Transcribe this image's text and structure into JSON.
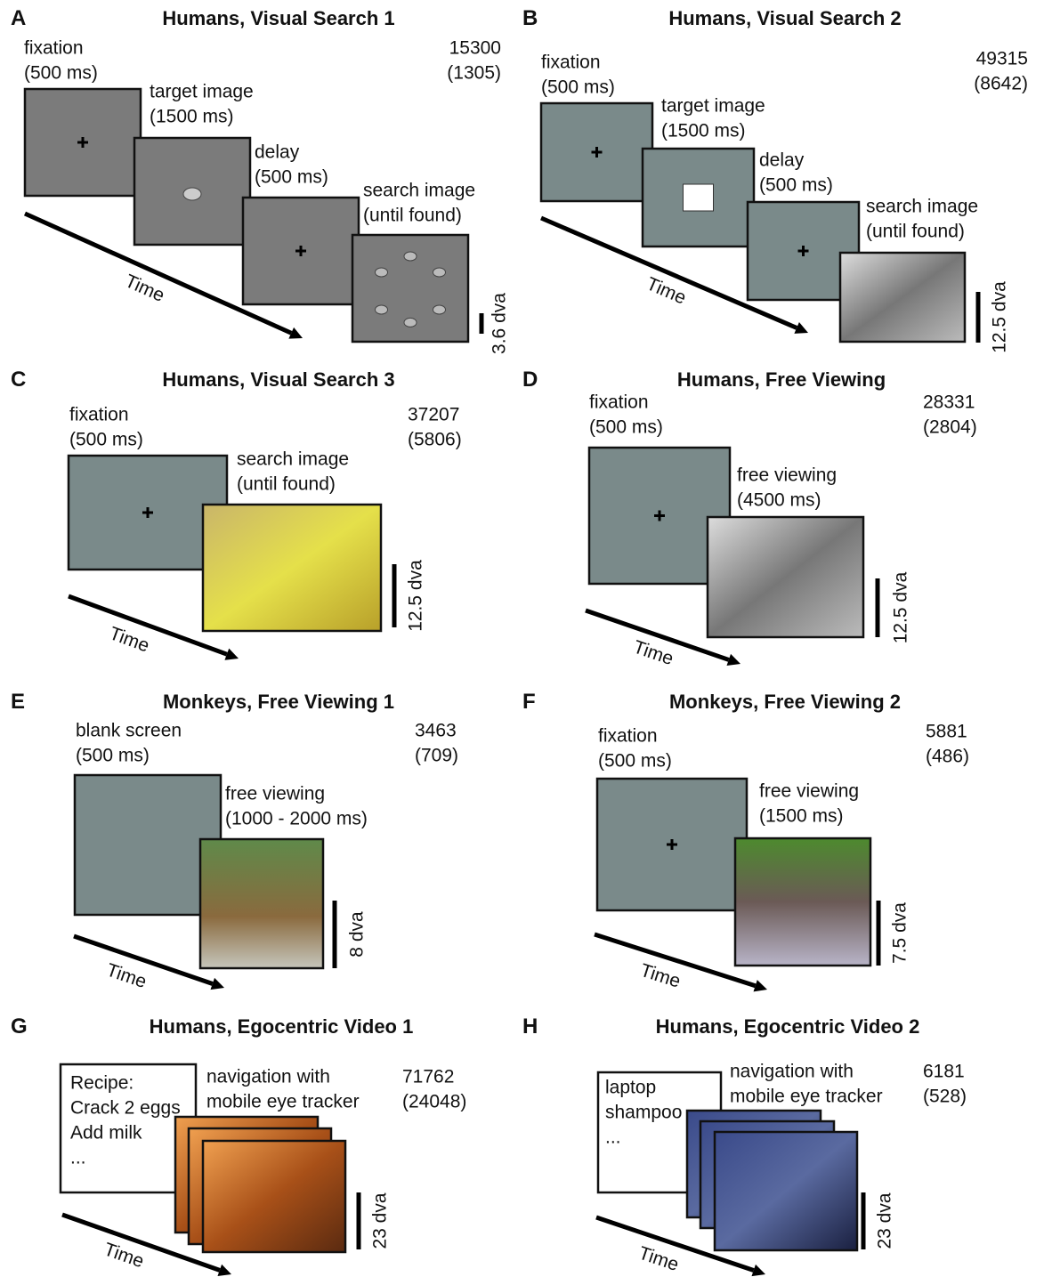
{
  "panels": [
    {
      "letter": "A",
      "title": "Humans, Visual Search 1",
      "stages": [
        [
          "fixation",
          "(500 ms)"
        ],
        [
          "target image",
          "(1500 ms)"
        ],
        [
          "delay",
          "(500 ms)"
        ],
        [
          "search image",
          "(until found)"
        ]
      ],
      "counts": [
        "15300",
        "(1305)"
      ],
      "time": "Time",
      "scale": "3.6 dva"
    },
    {
      "letter": "B",
      "title": "Humans, Visual Search 2",
      "stages": [
        [
          "fixation",
          "(500 ms)"
        ],
        [
          "target image",
          "(1500 ms)"
        ],
        [
          "delay",
          "(500 ms)"
        ],
        [
          "search image",
          "(until found)"
        ]
      ],
      "counts": [
        "49315",
        "(8642)"
      ],
      "time": "Time",
      "scale": "12.5 dva"
    },
    {
      "letter": "C",
      "title": "Humans, Visual Search 3",
      "stages": [
        [
          "fixation",
          "(500 ms)"
        ],
        [
          "search image",
          "(until found)"
        ]
      ],
      "counts": [
        "37207",
        "(5806)"
      ],
      "time": "Time",
      "scale": "12.5 dva"
    },
    {
      "letter": "D",
      "title": "Humans, Free Viewing",
      "stages": [
        [
          "fixation",
          "(500 ms)"
        ],
        [
          "free viewing",
          "(4500 ms)"
        ]
      ],
      "counts": [
        "28331",
        "(2804)"
      ],
      "time": "Time",
      "scale": "12.5 dva"
    },
    {
      "letter": "E",
      "title": "Monkeys, Free Viewing 1",
      "stages": [
        [
          "blank screen",
          "(500 ms)"
        ],
        [
          "free viewing",
          "(1000 - 2000 ms)"
        ]
      ],
      "counts": [
        "3463",
        "(709)"
      ],
      "time": "Time",
      "scale": "8 dva"
    },
    {
      "letter": "F",
      "title": "Monkeys, Free Viewing 2",
      "stages": [
        [
          "fixation",
          "(500 ms)"
        ],
        [
          "free viewing",
          "(1500 ms)"
        ]
      ],
      "counts": [
        "5881",
        "(486)"
      ],
      "time": "Time",
      "scale": "7.5 dva"
    },
    {
      "letter": "G",
      "title": "Humans, Egocentric Video 1",
      "stages": [
        [
          "navigation with",
          "mobile eye tracker"
        ]
      ],
      "notes": [
        "Recipe:",
        "Crack 2 eggs",
        "Add milk",
        "..."
      ],
      "counts": [
        "71762",
        "(24048)"
      ],
      "time": "Time",
      "scale": "23 dva"
    },
    {
      "letter": "H",
      "title": "Humans, Egocentric Video 2",
      "stages": [
        [
          "navigation with",
          "mobile eye tracker"
        ]
      ],
      "notes": [
        "laptop",
        "shampoo",
        "..."
      ],
      "counts": [
        "6181",
        "(528)"
      ],
      "time": "Time",
      "scale": "23 dva"
    }
  ]
}
